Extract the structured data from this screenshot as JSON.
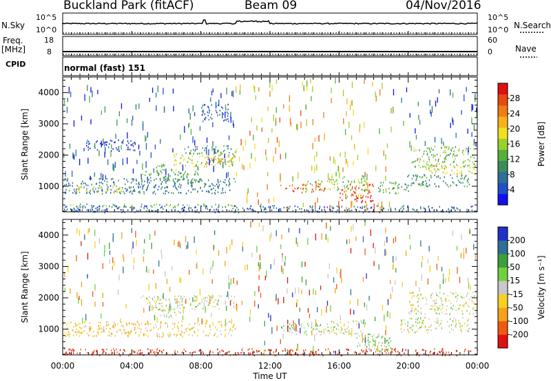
{
  "header": {
    "station": "Buckland Park (fitACF)",
    "beam": "Beam 09",
    "date": "04/Nov/2016"
  },
  "params": {
    "nsky_label": "N.Sky",
    "nsky_ticks": [
      "10^5",
      "10^0"
    ],
    "nsearch_label": "N.Search",
    "nsearch_ticks": [
      "10^5",
      "10^0"
    ],
    "freq_label_1": "Freq.",
    "freq_label_2": "[MHz]",
    "freq_ticks": [
      "18",
      "8"
    ],
    "nave_label": "Nave",
    "nave_ticks": [
      "60",
      "0"
    ],
    "cpid_label": "CPID",
    "cpid_value": "normal (fast) 151"
  },
  "chart_data": [
    {
      "type": "heatmap",
      "panel": "power",
      "ylabel": "Slant Range [km]",
      "ylim": [
        180,
        4500
      ],
      "yticks": [
        1000,
        2000,
        3000,
        4000
      ],
      "x_range_hours": [
        0,
        24
      ],
      "colorbar": {
        "label": "Power [dB]",
        "range": [
          0,
          32
        ],
        "ticks": [
          "28",
          "24",
          "20",
          "16",
          "12",
          "8",
          "4"
        ],
        "colors": [
          "#1010f0",
          "#2050c8",
          "#2e6f96",
          "#3d8c5d",
          "#54b03a",
          "#9ccf2c",
          "#f0e020",
          "#f7b21a",
          "#f07c14",
          "#e84a10",
          "#e01010"
        ]
      },
      "regions": [
        {
          "t": [
            0.0,
            10.0
          ],
          "r": [
            780,
            1280
          ],
          "level": 8
        },
        {
          "t": [
            0.8,
            4.2
          ],
          "r": [
            820,
            1010
          ],
          "level": 18
        },
        {
          "t": [
            4.5,
            8.0
          ],
          "r": [
            1120,
            1500
          ],
          "level": 12
        },
        {
          "t": [
            5.3,
            6.6
          ],
          "r": [
            1450,
            1720
          ],
          "level": 14
        },
        {
          "t": [
            6.4,
            10.0
          ],
          "r": [
            1650,
            2080
          ],
          "level": 16
        },
        {
          "t": [
            8.2,
            10.0
          ],
          "r": [
            1720,
            2030
          ],
          "level": 22
        },
        {
          "t": [
            7.0,
            10.0
          ],
          "r": [
            2050,
            2320
          ],
          "level": 10
        },
        {
          "t": [
            1.2,
            4.2
          ],
          "r": [
            2150,
            2500
          ],
          "level": 4
        },
        {
          "t": [
            8.0,
            9.6
          ],
          "r": [
            3100,
            3650
          ],
          "level": 6
        },
        {
          "t": [
            12.6,
            15.2
          ],
          "r": [
            820,
            1080
          ],
          "level": 26
        },
        {
          "t": [
            14.0,
            15.0
          ],
          "r": [
            1080,
            1250
          ],
          "level": 14
        },
        {
          "t": [
            16.0,
            18.0
          ],
          "r": [
            500,
            1100
          ],
          "level": 28
        },
        {
          "t": [
            15.3,
            17.6
          ],
          "r": [
            900,
            1350
          ],
          "level": 14
        },
        {
          "t": [
            18.2,
            20.0
          ],
          "r": [
            780,
            1150
          ],
          "level": 12
        },
        {
          "t": [
            19.8,
            23.6
          ],
          "r": [
            1000,
            1400
          ],
          "level": 10
        },
        {
          "t": [
            20.2,
            23.8
          ],
          "r": [
            1600,
            2300
          ],
          "level": 14
        },
        {
          "t": [
            21.0,
            24.0
          ],
          "r": [
            1400,
            1700
          ],
          "level": 18
        },
        {
          "t": [
            0.0,
            24.0
          ],
          "r": [
            180,
            400
          ],
          "level": 6
        },
        {
          "t": [
            0.0,
            10.0
          ],
          "r": [
            350,
            450
          ],
          "level": 14
        }
      ],
      "sparse_regions": [
        {
          "t": [
            10.0,
            19.0
          ],
          "r": [
            300,
            4500
          ],
          "level": 20
        },
        {
          "t": [
            0.0,
            10.0
          ],
          "r": [
            1300,
            4300
          ],
          "level": 6
        },
        {
          "t": [
            19.0,
            24.0
          ],
          "r": [
            2200,
            4300
          ],
          "level": 6
        }
      ]
    },
    {
      "type": "heatmap",
      "panel": "velocity",
      "ylabel": "Slant Range [km]",
      "ylim": [
        180,
        4500
      ],
      "yticks": [
        1000,
        2000,
        3000,
        4000
      ],
      "x_range_hours": [
        0,
        24
      ],
      "xticks": [
        "00:00",
        "04:00",
        "08:00",
        "12:00",
        "16:00",
        "20:00",
        "00:00"
      ],
      "xlabel": "Time UT",
      "colorbar": {
        "label": "Velocity [m s⁻¹]",
        "range": [
          -250,
          250
        ],
        "ticks": [
          "200",
          "100",
          "50",
          "15",
          "-15",
          "-50",
          "-100",
          "-200"
        ],
        "colors": [
          "#e01010",
          "#f05a10",
          "#f7a01a",
          "#f7d020",
          "#c8c8c8",
          "#6fd040",
          "#3aa03a",
          "#2e6f96",
          "#2030c8"
        ]
      },
      "regions": [
        {
          "t": [
            0.0,
            10.0
          ],
          "r": [
            780,
            1280
          ],
          "level": -60
        },
        {
          "t": [
            4.5,
            10.0
          ],
          "r": [
            1650,
            2100
          ],
          "level": 0
        },
        {
          "t": [
            5.5,
            7.0
          ],
          "r": [
            1400,
            1700
          ],
          "level": 0
        },
        {
          "t": [
            12.5,
            15.0
          ],
          "r": [
            850,
            1200
          ],
          "level": 40
        },
        {
          "t": [
            15.2,
            17.5
          ],
          "r": [
            850,
            1300
          ],
          "level": 0
        },
        {
          "t": [
            17.0,
            19.0
          ],
          "r": [
            300,
            900
          ],
          "level": 40
        },
        {
          "t": [
            20.0,
            24.0
          ],
          "r": [
            1500,
            2200
          ],
          "level": 0
        },
        {
          "t": [
            19.5,
            23.5
          ],
          "r": [
            900,
            1400
          ],
          "level": 0
        },
        {
          "t": [
            0.0,
            24.0
          ],
          "r": [
            180,
            400
          ],
          "level": -200
        }
      ],
      "sparse_regions": [
        {
          "t": [
            10.0,
            19.0
          ],
          "r": [
            300,
            4500
          ],
          "level": 150
        },
        {
          "t": [
            0.0,
            10.0
          ],
          "r": [
            1300,
            4300
          ],
          "level": 120
        },
        {
          "t": [
            19.0,
            24.0
          ],
          "r": [
            2200,
            4300
          ],
          "level": 120
        }
      ]
    }
  ]
}
